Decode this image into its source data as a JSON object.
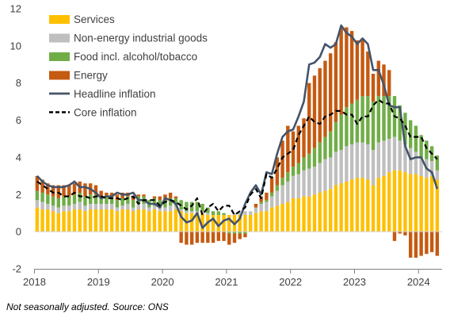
{
  "chart_data": {
    "type": "bar",
    "stacked": true,
    "ylim": [
      -2,
      12
    ],
    "yticks": [
      -2,
      0,
      2,
      4,
      6,
      8,
      10,
      12
    ],
    "xtick_labels": [
      "2018",
      "2019",
      "2020",
      "2021",
      "2022",
      "2023",
      "2024"
    ],
    "legend_position": "top-left",
    "grid": false,
    "x_start": "2018-01",
    "x_end": "2024-04",
    "series": [
      {
        "name": "Services",
        "kind": "bar",
        "color": "#FFC000",
        "values": [
          1.3,
          1.2,
          1.2,
          1.1,
          1.0,
          1.1,
          1.1,
          1.2,
          1.2,
          1.1,
          1.2,
          1.2,
          1.2,
          1.2,
          1.2,
          1.1,
          1.2,
          1.2,
          1.1,
          1.2,
          1.2,
          1.1,
          1.2,
          1.1,
          1.1,
          1.1,
          1.2,
          1.1,
          1.0,
          1.0,
          1.0,
          1.0,
          0.9,
          0.9,
          0.9,
          0.9,
          0.9,
          0.9,
          0.9,
          0.9,
          0.9,
          1.0,
          1.1,
          1.1,
          1.3,
          1.4,
          1.5,
          1.6,
          1.8,
          1.8,
          1.9,
          1.9,
          2.0,
          2.1,
          2.2,
          2.3,
          2.5,
          2.6,
          2.7,
          2.8,
          2.9,
          2.9,
          2.8,
          2.5,
          2.9,
          3.0,
          3.2,
          3.3,
          3.3,
          3.2,
          3.1,
          3.1,
          3.0,
          2.9,
          3.0,
          2.8
        ]
      },
      {
        "name": "Non-energy industrial goods",
        "kind": "bar",
        "color": "#BFBFBF",
        "values": [
          0.4,
          0.4,
          0.3,
          0.3,
          0.3,
          0.3,
          0.3,
          0.3,
          0.4,
          0.3,
          0.3,
          0.3,
          0.3,
          0.3,
          0.3,
          0.2,
          0.2,
          0.3,
          0.2,
          0.3,
          0.3,
          0.2,
          0.2,
          0.2,
          0.2,
          0.3,
          0.2,
          0.1,
          0.1,
          0.1,
          0.1,
          0.1,
          0.1,
          0.0,
          0.0,
          0.0,
          0.0,
          0.1,
          0.1,
          0.2,
          0.2,
          0.3,
          0.4,
          0.5,
          0.6,
          0.8,
          1.0,
          1.1,
          1.2,
          1.3,
          1.4,
          1.5,
          1.5,
          1.6,
          1.7,
          1.7,
          1.8,
          1.8,
          1.9,
          1.9,
          1.9,
          1.9,
          1.9,
          1.9,
          1.9,
          1.9,
          1.8,
          1.8,
          1.6,
          1.5,
          1.4,
          1.2,
          1.0,
          1.0,
          0.8,
          0.5
        ]
      },
      {
        "name": "Food incl. alcohol/tobacco",
        "kind": "bar",
        "color": "#70AD47",
        "values": [
          0.5,
          0.5,
          0.5,
          0.5,
          0.5,
          0.5,
          0.5,
          0.5,
          0.5,
          0.5,
          0.5,
          0.5,
          0.4,
          0.4,
          0.4,
          0.4,
          0.4,
          0.4,
          0.4,
          0.4,
          0.4,
          0.4,
          0.4,
          0.4,
          0.4,
          0.4,
          0.4,
          0.5,
          0.5,
          0.5,
          0.5,
          0.4,
          0.3,
          0.2,
          0.2,
          0.1,
          -0.1,
          -0.1,
          -0.1,
          -0.1,
          0.0,
          0.0,
          0.1,
          0.1,
          0.2,
          0.3,
          0.4,
          0.5,
          0.5,
          0.6,
          0.7,
          0.8,
          1.0,
          1.1,
          1.2,
          1.4,
          1.6,
          1.9,
          2.1,
          2.2,
          2.3,
          2.5,
          2.6,
          2.6,
          2.5,
          2.4,
          2.3,
          2.2,
          1.9,
          1.7,
          1.5,
          1.4,
          1.2,
          1.0,
          0.8,
          0.8
        ]
      },
      {
        "name": "Energy",
        "kind": "bar",
        "color": "#C55A11",
        "values": [
          0.8,
          0.7,
          0.6,
          0.6,
          0.7,
          0.6,
          0.6,
          0.6,
          0.6,
          0.7,
          0.6,
          0.5,
          0.3,
          0.2,
          0.2,
          0.3,
          0.3,
          0.2,
          0.2,
          0.1,
          0.1,
          0.0,
          0.1,
          0.2,
          0.3,
          0.3,
          0.1,
          -0.6,
          -0.7,
          -0.7,
          -0.6,
          -0.6,
          -0.6,
          -0.6,
          -0.5,
          -0.5,
          -0.6,
          -0.5,
          -0.3,
          -0.2,
          0.0,
          0.2,
          0.3,
          0.4,
          0.8,
          1.5,
          2.0,
          2.5,
          1.9,
          2.0,
          2.1,
          3.8,
          3.9,
          4.0,
          4.1,
          4.2,
          4.3,
          4.7,
          4.3,
          3.9,
          3.2,
          3.1,
          2.4,
          1.5,
          1.9,
          1.7,
          1.4,
          -0.5,
          -0.1,
          -0.2,
          -1.4,
          -1.4,
          -1.3,
          -1.2,
          -1.1,
          -1.3
        ]
      },
      {
        "name": "Headline inflation",
        "kind": "line",
        "color": "#44546A",
        "dash": false,
        "values": [
          3.0,
          2.7,
          2.5,
          2.4,
          2.4,
          2.4,
          2.5,
          2.7,
          2.4,
          2.4,
          2.3,
          2.1,
          1.8,
          1.9,
          1.9,
          2.1,
          2.0,
          2.0,
          2.1,
          1.7,
          1.7,
          1.5,
          1.5,
          1.3,
          1.8,
          1.7,
          1.5,
          0.8,
          0.5,
          0.6,
          1.0,
          0.2,
          0.5,
          0.7,
          0.3,
          0.6,
          0.7,
          0.4,
          0.7,
          1.5,
          2.1,
          2.5,
          2.0,
          3.2,
          3.1,
          4.2,
          5.1,
          5.4,
          5.5,
          6.2,
          7.0,
          9.0,
          9.1,
          9.4,
          10.1,
          9.9,
          10.1,
          11.1,
          10.7,
          10.5,
          10.1,
          10.4,
          10.1,
          8.7,
          8.7,
          7.9,
          6.8,
          6.7,
          6.7,
          4.6,
          3.9,
          4.0,
          4.0,
          3.4,
          3.2,
          2.3
        ]
      },
      {
        "name": "Core inflation",
        "kind": "line",
        "color": "#000000",
        "dash": true,
        "values": [
          2.7,
          2.5,
          2.3,
          2.1,
          2.1,
          1.9,
          1.9,
          2.1,
          1.9,
          1.9,
          1.8,
          1.9,
          1.9,
          1.8,
          1.8,
          1.8,
          1.7,
          1.8,
          1.9,
          1.5,
          1.7,
          1.7,
          1.7,
          1.4,
          1.6,
          1.7,
          1.6,
          1.4,
          1.2,
          1.4,
          1.8,
          0.9,
          1.3,
          1.5,
          1.1,
          1.4,
          1.4,
          0.9,
          1.1,
          1.3,
          2.0,
          2.3,
          1.8,
          3.1,
          2.9,
          3.4,
          4.0,
          4.2,
          4.4,
          5.2,
          5.7,
          6.2,
          5.9,
          5.8,
          6.2,
          6.3,
          6.5,
          6.5,
          6.3,
          6.3,
          5.8,
          6.2,
          6.2,
          6.8,
          7.1,
          6.9,
          6.9,
          6.2,
          6.1,
          5.7,
          5.1,
          5.1,
          5.1,
          4.5,
          4.2,
          3.9
        ]
      }
    ]
  },
  "footnote": "Not seasonally adjusted. Source: ONS"
}
